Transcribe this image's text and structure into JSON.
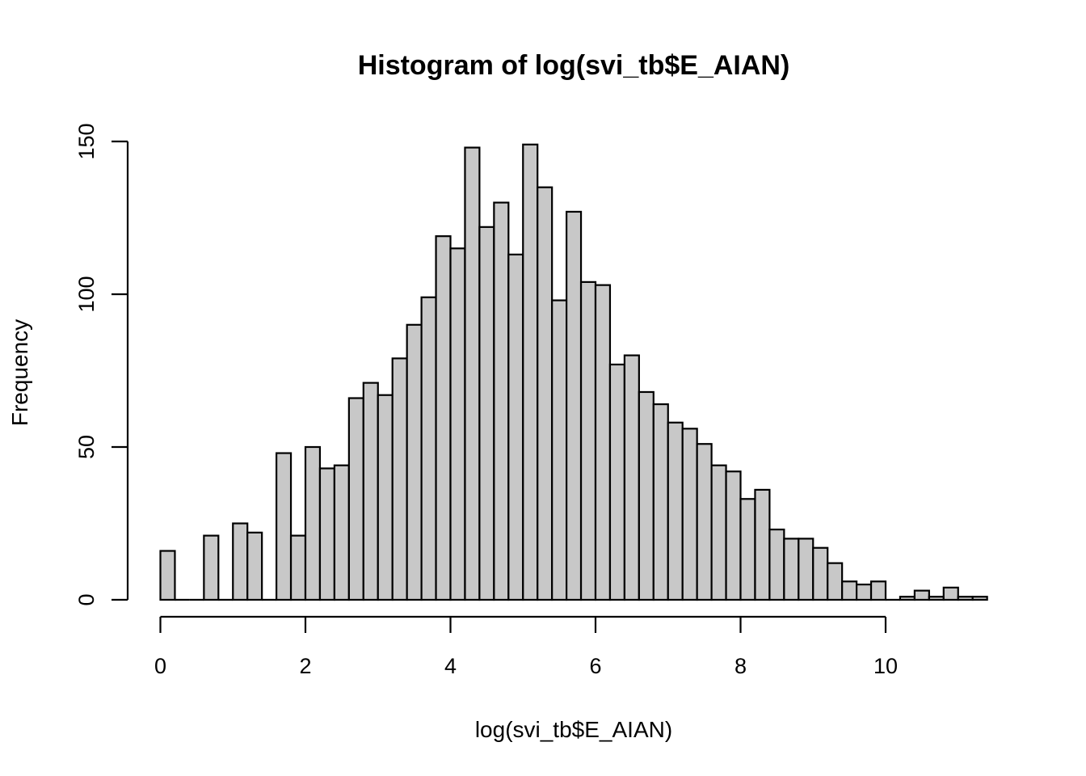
{
  "chart_data": {
    "type": "bar",
    "title": "Histogram of log(svi_tb$E_AIAN)",
    "xlabel": "log(svi_tb$E_AIAN)",
    "ylabel": "Frequency",
    "bin_width": 0.2,
    "bin_start": 0,
    "values": [
      16,
      0,
      0,
      21,
      0,
      25,
      22,
      0,
      48,
      21,
      50,
      43,
      44,
      66,
      71,
      67,
      79,
      90,
      99,
      119,
      115,
      148,
      122,
      130,
      113,
      149,
      135,
      98,
      127,
      104,
      103,
      77,
      80,
      68,
      64,
      58,
      56,
      51,
      44,
      42,
      33,
      36,
      23,
      20,
      20,
      17,
      12,
      6,
      5,
      6,
      0,
      1,
      3,
      1,
      4,
      1,
      1
    ],
    "xlim": [
      0,
      11.4
    ],
    "ylim": [
      0,
      150
    ],
    "x_ticks": [
      "0",
      "2",
      "4",
      "6",
      "8",
      "10"
    ],
    "y_ticks": [
      "0",
      "50",
      "100",
      "150"
    ],
    "grid": false,
    "colors": {
      "bar_fill": "#c8c8c8",
      "bar_stroke": "#000000"
    }
  }
}
